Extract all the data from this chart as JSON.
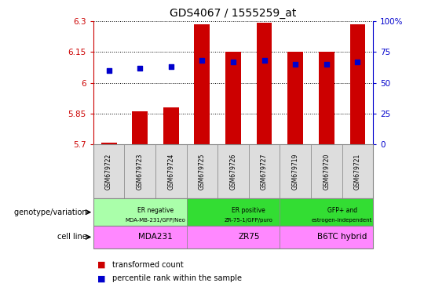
{
  "title": "GDS4067 / 1555259_at",
  "samples": [
    "GSM679722",
    "GSM679723",
    "GSM679724",
    "GSM679725",
    "GSM679726",
    "GSM679727",
    "GSM679719",
    "GSM679720",
    "GSM679721"
  ],
  "transformed_count": [
    5.71,
    5.86,
    5.88,
    6.285,
    6.15,
    6.292,
    6.15,
    6.15,
    6.285
  ],
  "percentile_rank": [
    60,
    62,
    63,
    68,
    67,
    68,
    65,
    65,
    67
  ],
  "ylim_left": [
    5.7,
    6.3
  ],
  "ylim_right": [
    0,
    100
  ],
  "yticks_left": [
    5.7,
    5.85,
    6.0,
    6.15,
    6.3
  ],
  "yticks_right": [
    0,
    25,
    50,
    75,
    100
  ],
  "ytick_labels_left": [
    "5.7",
    "5.85",
    "6",
    "6.15",
    "6.3"
  ],
  "ytick_labels_right": [
    "0",
    "25",
    "50",
    "75",
    "100%"
  ],
  "groups": [
    {
      "label": "ER negative\nMDA-MB-231/GFP/Neo",
      "color": "#AAFFAA",
      "start": 0,
      "end": 3
    },
    {
      "label": "ER positive\nZR-75-1/GFP/puro",
      "color": "#33DD33",
      "start": 3,
      "end": 6
    },
    {
      "label": "GFP+ and\nestrogen-independent",
      "color": "#33DD33",
      "start": 6,
      "end": 9
    }
  ],
  "cell_lines": [
    {
      "label": "MDA231",
      "color": "#FF88FF",
      "start": 0,
      "end": 3
    },
    {
      "label": "ZR75",
      "color": "#FF88FF",
      "start": 3,
      "end": 6
    },
    {
      "label": "B6TC hybrid",
      "color": "#FF88FF",
      "start": 6,
      "end": 9
    }
  ],
  "bar_color": "#CC0000",
  "dot_color": "#0000CC",
  "bar_width": 0.5,
  "dot_size": 22,
  "left_label_color": "#CC0000",
  "right_label_color": "#0000CC",
  "legend_red": "transformed count",
  "legend_blue": "percentile rank within the sample",
  "genotype_label": "genotype/variation",
  "cellline_label": "cell line",
  "sample_box_color": "#DDDDDD",
  "n_samples": 9
}
